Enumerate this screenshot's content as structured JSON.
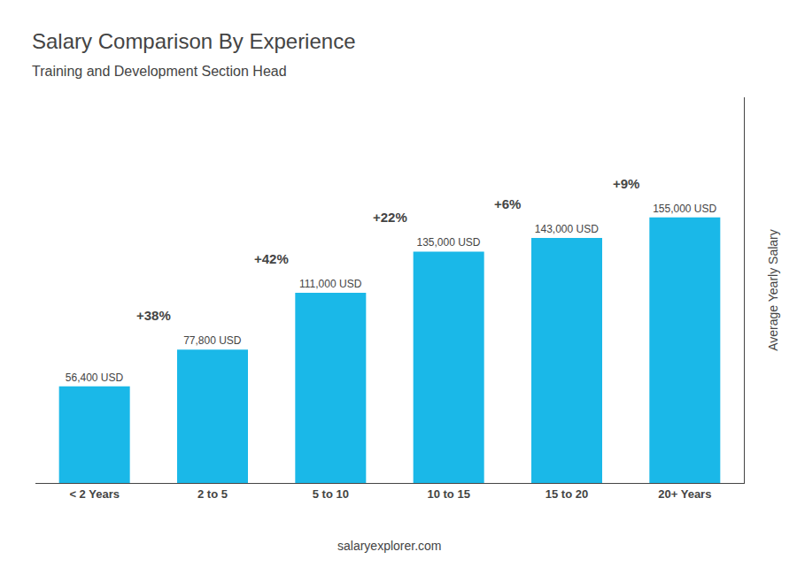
{
  "chart_data": {
    "type": "bar",
    "title": "Salary Comparison By Experience",
    "subtitle": "Training and Development Section Head",
    "y_label": "Average Yearly Salary",
    "categories": [
      "< 2 Years",
      "2 to 5",
      "5 to 10",
      "10 to 15",
      "15 to 20",
      "20+ Years"
    ],
    "values": [
      56400,
      77800,
      111000,
      135000,
      143000,
      155000
    ],
    "value_labels": [
      "56,400 USD",
      "77,800 USD",
      "111,000 USD",
      "135,000 USD",
      "143,000 USD",
      "155,000 USD"
    ],
    "data_labels": true,
    "color": "#1ab8e8",
    "ylim": [
      0,
      225000
    ],
    "tick_labels": "x",
    "grid": false,
    "annotations": [
      "+38%",
      "+42%",
      "+22%",
      "+6%",
      "+9%"
    ],
    "source": "salaryexplorer.com"
  }
}
